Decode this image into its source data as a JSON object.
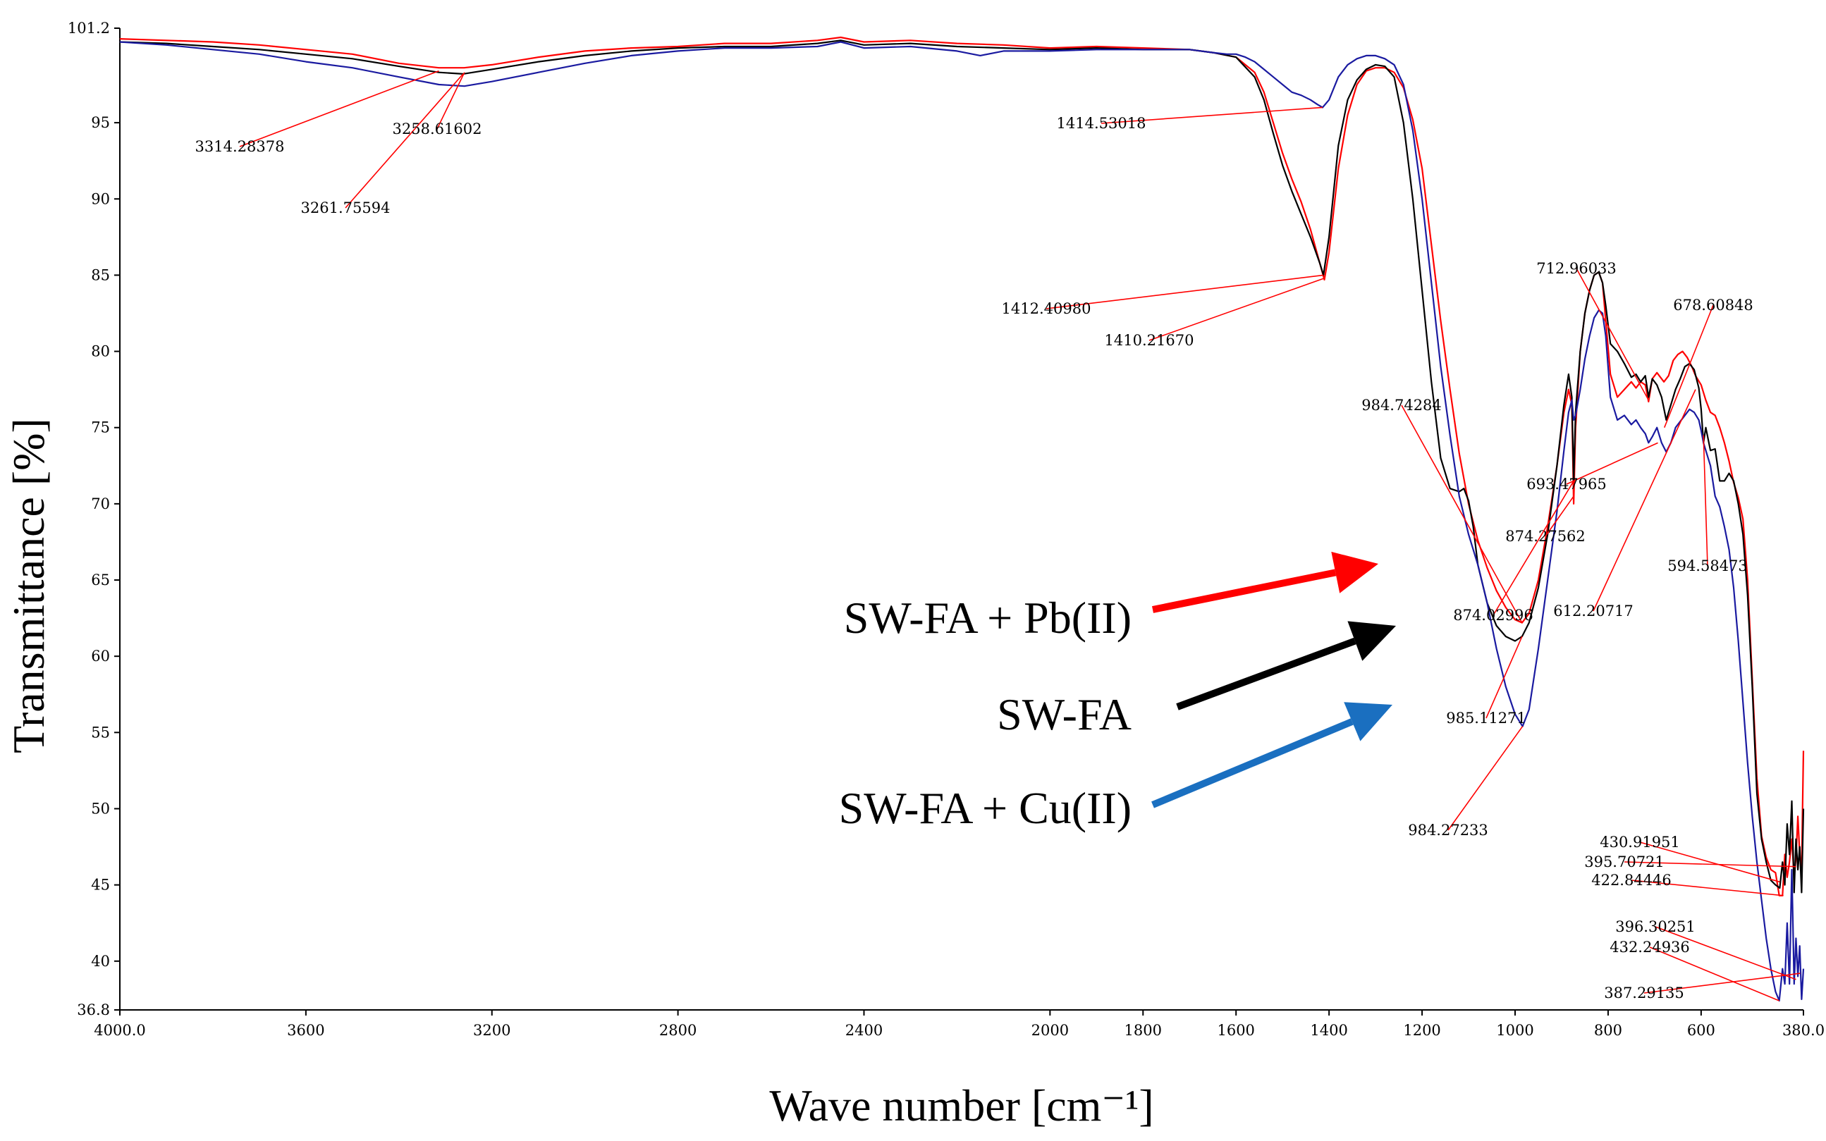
{
  "chart_data": {
    "type": "line",
    "xlabel": "Wave number [cm⁻¹]",
    "ylabel": "Transmittance [%]",
    "xlim": [
      4000.0,
      380.0
    ],
    "ylim": [
      36.8,
      101.2
    ],
    "x_ticks": [
      {
        "value": 4000,
        "label": "4000.0"
      },
      {
        "value": 3600,
        "label": "3600"
      },
      {
        "value": 3200,
        "label": "3200"
      },
      {
        "value": 2800,
        "label": "2800"
      },
      {
        "value": 2400,
        "label": "2400"
      },
      {
        "value": 2000,
        "label": "2000"
      },
      {
        "value": 1800,
        "label": "1800"
      },
      {
        "value": 1600,
        "label": "1600"
      },
      {
        "value": 1400,
        "label": "1400"
      },
      {
        "value": 1200,
        "label": "1200"
      },
      {
        "value": 1000,
        "label": "1000"
      },
      {
        "value": 800,
        "label": "800"
      },
      {
        "value": 600,
        "label": "600"
      },
      {
        "value": 380,
        "label": "380.0"
      }
    ],
    "y_ticks": [
      {
        "value": 101.2,
        "label": "101.2"
      },
      {
        "value": 95,
        "label": "95"
      },
      {
        "value": 90,
        "label": "90"
      },
      {
        "value": 85,
        "label": "85"
      },
      {
        "value": 80,
        "label": "80"
      },
      {
        "value": 75,
        "label": "75"
      },
      {
        "value": 70,
        "label": "70"
      },
      {
        "value": 65,
        "label": "65"
      },
      {
        "value": 60,
        "label": "60"
      },
      {
        "value": 55,
        "label": "55"
      },
      {
        "value": 50,
        "label": "50"
      },
      {
        "value": 45,
        "label": "45"
      },
      {
        "value": 40,
        "label": "40"
      },
      {
        "value": 36.8,
        "label": "36.8"
      }
    ],
    "series": [
      {
        "name": "SW-FA + Pb(II)",
        "color": "#ff0000",
        "x": [
          4000,
          3900,
          3800,
          3700,
          3600,
          3500,
          3400,
          3314,
          3260,
          3200,
          3100,
          3000,
          2900,
          2800,
          2700,
          2600,
          2500,
          2450,
          2400,
          2300,
          2200,
          2100,
          2000,
          1900,
          1800,
          1700,
          1650,
          1600,
          1560,
          1540,
          1520,
          1500,
          1480,
          1460,
          1440,
          1420,
          1410,
          1400,
          1380,
          1360,
          1340,
          1320,
          1300,
          1280,
          1260,
          1240,
          1220,
          1200,
          1180,
          1160,
          1140,
          1120,
          1100,
          1080,
          1060,
          1040,
          1020,
          1000,
          985,
          970,
          950,
          930,
          910,
          895,
          885,
          878,
          874,
          870,
          860,
          850,
          840,
          830,
          820,
          812,
          805,
          795,
          780,
          765,
          750,
          740,
          730,
          720,
          713,
          705,
          695,
          680,
          670,
          660,
          650,
          640,
          630,
          620,
          612,
          600,
          590,
          580,
          570,
          560,
          550,
          540,
          530,
          520,
          510,
          500,
          490,
          480,
          470,
          460,
          450,
          440,
          432,
          425,
          420,
          415,
          410,
          405,
          400,
          396,
          392,
          388,
          384,
          380
        ],
        "y": [
          100.5,
          100.4,
          100.3,
          100.1,
          99.8,
          99.5,
          98.9,
          98.6,
          98.6,
          98.8,
          99.3,
          99.7,
          99.9,
          100.0,
          100.2,
          100.2,
          100.4,
          100.6,
          100.3,
          100.4,
          100.2,
          100.1,
          99.9,
          100.0,
          99.9,
          99.8,
          99.6,
          99.3,
          98.3,
          97.0,
          95.0,
          93.0,
          91.3,
          89.8,
          88.0,
          85.8,
          84.7,
          86.5,
          92.0,
          95.5,
          97.5,
          98.4,
          98.6,
          98.6,
          98.3,
          97.3,
          95.2,
          92.0,
          87.0,
          82.0,
          77.5,
          73.3,
          70.0,
          67.6,
          65.8,
          64.3,
          63.2,
          62.4,
          62.2,
          62.8,
          65.0,
          68.5,
          72.5,
          76.0,
          77.5,
          76.5,
          70.0,
          75.0,
          80.0,
          82.5,
          84.0,
          85.0,
          85.2,
          84.5,
          82.0,
          78.5,
          77.0,
          77.5,
          78.0,
          77.6,
          78.0,
          77.8,
          76.7,
          78.2,
          78.6,
          78.0,
          78.4,
          79.4,
          79.8,
          80.0,
          79.6,
          79.0,
          78.4,
          77.8,
          76.8,
          76.0,
          75.8,
          75.0,
          74.0,
          72.8,
          71.4,
          70.4,
          69.0,
          65.0,
          58.5,
          52.0,
          48.2,
          46.8,
          46.0,
          45.8,
          44.3,
          44.3,
          47.0,
          45.5,
          46.5,
          48.0,
          45.5,
          46.8,
          49.5,
          47.0,
          46.0,
          53.8
        ]
      },
      {
        "name": "SW-FA",
        "color": "#000000",
        "x": [
          4000,
          3900,
          3800,
          3700,
          3600,
          3500,
          3400,
          3314,
          3262,
          3200,
          3100,
          3000,
          2900,
          2800,
          2700,
          2600,
          2500,
          2450,
          2400,
          2300,
          2200,
          2100,
          2000,
          1900,
          1800,
          1700,
          1650,
          1600,
          1560,
          1540,
          1520,
          1500,
          1480,
          1460,
          1440,
          1420,
          1412,
          1400,
          1380,
          1360,
          1340,
          1320,
          1300,
          1280,
          1260,
          1240,
          1220,
          1200,
          1180,
          1160,
          1140,
          1120,
          1110,
          1100,
          1090,
          1080,
          1060,
          1040,
          1020,
          1000,
          985,
          970,
          950,
          930,
          910,
          895,
          885,
          878,
          874,
          870,
          860,
          850,
          840,
          830,
          820,
          812,
          805,
          795,
          780,
          765,
          750,
          740,
          730,
          720,
          713,
          705,
          695,
          685,
          675,
          665,
          655,
          645,
          635,
          625,
          615,
          605,
          600,
          595,
          590,
          580,
          570,
          560,
          550,
          540,
          530,
          520,
          510,
          500,
          490,
          480,
          470,
          460,
          450,
          440,
          431,
          425,
          420,
          415,
          410,
          405,
          400,
          396,
          392,
          388,
          384,
          380
        ],
        "y": [
          100.3,
          100.2,
          100.0,
          99.8,
          99.5,
          99.2,
          98.7,
          98.3,
          98.2,
          98.5,
          99.0,
          99.4,
          99.7,
          99.9,
          100.0,
          100.0,
          100.2,
          100.4,
          100.1,
          100.2,
          100.0,
          99.9,
          99.8,
          99.9,
          99.8,
          99.8,
          99.6,
          99.3,
          98.0,
          96.5,
          94.3,
          92.2,
          90.5,
          89.0,
          87.5,
          85.8,
          85.0,
          87.5,
          93.5,
          96.5,
          97.8,
          98.5,
          98.8,
          98.7,
          98.0,
          95.0,
          90.0,
          84.0,
          78.0,
          73.0,
          71.0,
          70.8,
          71.0,
          70.2,
          68.5,
          66.0,
          63.5,
          62.0,
          61.3,
          61.0,
          61.3,
          62.2,
          64.5,
          68.0,
          72.5,
          76.5,
          78.5,
          77.0,
          71.5,
          76.0,
          80.0,
          82.5,
          84.0,
          85.0,
          85.2,
          84.5,
          83.0,
          80.5,
          80.0,
          79.2,
          78.3,
          78.5,
          78.0,
          78.4,
          77.0,
          78.2,
          77.8,
          77.0,
          75.5,
          76.5,
          77.5,
          78.2,
          79.0,
          79.2,
          78.8,
          77.6,
          76.2,
          74.0,
          75.0,
          73.5,
          73.6,
          71.5,
          71.5,
          72.0,
          71.5,
          70.0,
          68.0,
          64.0,
          58.0,
          51.0,
          48.0,
          46.5,
          45.3,
          45.0,
          44.8,
          46.5,
          45.0,
          49.0,
          47.0,
          50.5,
          44.5,
          48.0,
          46.0,
          47.5,
          44.5,
          50.0
        ]
      },
      {
        "name": "SW-FA + Cu(II)",
        "color": "#1a1aa0",
        "x": [
          4000,
          3900,
          3800,
          3700,
          3600,
          3500,
          3400,
          3314,
          3259,
          3200,
          3100,
          3000,
          2900,
          2800,
          2700,
          2600,
          2500,
          2450,
          2400,
          2300,
          2200,
          2150,
          2100,
          2000,
          1900,
          1800,
          1700,
          1650,
          1620,
          1600,
          1580,
          1560,
          1540,
          1520,
          1500,
          1480,
          1460,
          1440,
          1425,
          1414,
          1400,
          1380,
          1360,
          1340,
          1320,
          1300,
          1280,
          1260,
          1240,
          1220,
          1200,
          1180,
          1160,
          1140,
          1120,
          1100,
          1080,
          1060,
          1040,
          1020,
          1000,
          984,
          970,
          950,
          930,
          910,
          895,
          885,
          878,
          874,
          870,
          860,
          850,
          840,
          830,
          820,
          812,
          805,
          795,
          780,
          765,
          750,
          740,
          730,
          720,
          713,
          705,
          695,
          685,
          675,
          665,
          655,
          645,
          635,
          625,
          615,
          605,
          600,
          595,
          590,
          580,
          570,
          560,
          550,
          540,
          530,
          520,
          510,
          500,
          490,
          480,
          470,
          460,
          450,
          440,
          432,
          425,
          420,
          415,
          410,
          405,
          400,
          396,
          392,
          388,
          384,
          380
        ],
        "y": [
          100.3,
          100.1,
          99.8,
          99.5,
          99.0,
          98.6,
          98.0,
          97.5,
          97.4,
          97.7,
          98.3,
          98.9,
          99.4,
          99.7,
          99.9,
          99.9,
          100.0,
          100.3,
          99.9,
          100.0,
          99.7,
          99.4,
          99.7,
          99.7,
          99.8,
          99.8,
          99.8,
          99.6,
          99.5,
          99.5,
          99.3,
          99.0,
          98.5,
          98.0,
          97.5,
          97.0,
          96.8,
          96.5,
          96.2,
          96.0,
          96.5,
          98.0,
          98.8,
          99.2,
          99.4,
          99.4,
          99.2,
          98.8,
          97.5,
          94.5,
          90.0,
          84.5,
          79.0,
          74.5,
          70.5,
          68.0,
          66.0,
          63.5,
          60.5,
          58.0,
          56.2,
          55.4,
          56.5,
          60.5,
          65.0,
          69.5,
          73.5,
          76.0,
          76.8,
          75.5,
          75.8,
          77.5,
          79.5,
          81.0,
          82.2,
          82.7,
          82.5,
          81.0,
          77.0,
          75.5,
          75.8,
          75.2,
          75.5,
          75.0,
          74.6,
          74.0,
          74.4,
          75.0,
          74.0,
          73.4,
          74.0,
          75.0,
          75.4,
          75.8,
          76.2,
          76.0,
          75.5,
          74.8,
          74.0,
          73.5,
          72.5,
          70.5,
          69.8,
          68.5,
          67.0,
          64.5,
          61.0,
          57.0,
          53.0,
          49.5,
          46.5,
          44.0,
          41.5,
          39.5,
          38.0,
          37.4,
          39.5,
          38.5,
          42.5,
          38.5,
          46.0,
          38.5,
          41.5,
          39.0,
          41.0,
          37.5,
          39.5
        ]
      }
    ],
    "annotations": [
      {
        "label": "3314.28378",
        "x": 3314,
        "y": 98.4
      },
      {
        "label": "3261.75594",
        "x": 3262,
        "y": 98.2
      },
      {
        "label": "3258.61602",
        "x": 3259,
        "y": 98.3
      },
      {
        "label": "1414.53018",
        "x": 1414,
        "y": 96.0
      },
      {
        "label": "1412.40980",
        "x": 1412,
        "y": 85.0
      },
      {
        "label": "1410.21670",
        "x": 1410,
        "y": 84.8
      },
      {
        "label": "984.74284",
        "x": 985,
        "y": 62.2
      },
      {
        "label": "985.11271",
        "x": 985,
        "y": 61.3
      },
      {
        "label": "984.27233",
        "x": 984,
        "y": 55.4
      },
      {
        "label": "874.27562",
        "x": 874,
        "y": 70.5
      },
      {
        "label": "874.02996",
        "x": 874,
        "y": 71.5
      },
      {
        "label": "712.96033",
        "x": 713,
        "y": 76.8
      },
      {
        "label": "693.47965",
        "x": 693,
        "y": 74.0
      },
      {
        "label": "678.60848",
        "x": 679,
        "y": 75.0
      },
      {
        "label": "612.20717",
        "x": 612,
        "y": 77.5
      },
      {
        "label": "594.58473",
        "x": 595,
        "y": 74.5
      },
      {
        "label": "395.70721",
        "x": 396,
        "y": 46.2
      },
      {
        "label": "430.91951",
        "x": 431,
        "y": 45.2
      },
      {
        "label": "422.84446",
        "x": 423,
        "y": 44.3
      },
      {
        "label": "396.30251",
        "x": 396,
        "y": 38.8
      },
      {
        "label": "432.24936",
        "x": 432,
        "y": 37.4
      },
      {
        "label": "387.29135",
        "x": 387,
        "y": 39.2
      }
    ],
    "legend": [
      {
        "label": "SW-FA + Pb(II)",
        "color": "#ff0000"
      },
      {
        "label": "SW-FA",
        "color": "#000000"
      },
      {
        "label": "SW-FA + Cu(II)",
        "color": "#1a6fc0"
      }
    ]
  }
}
